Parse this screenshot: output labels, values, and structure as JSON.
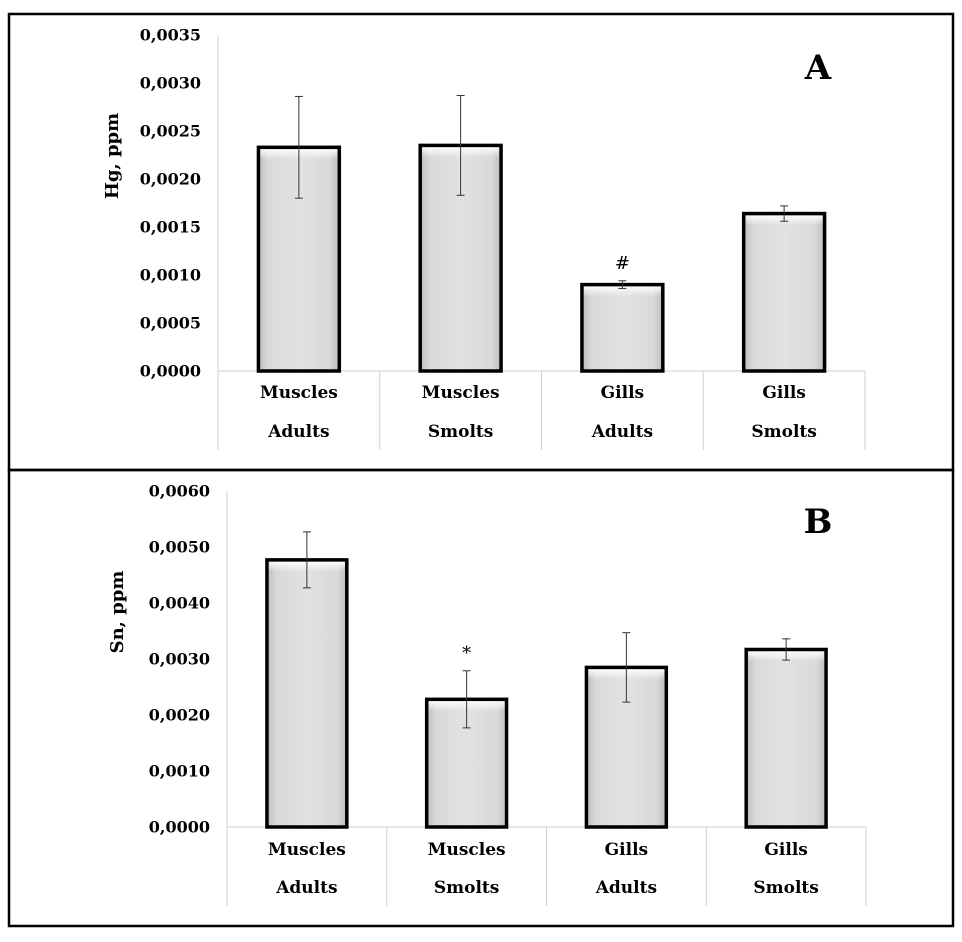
{
  "chart_data": [
    {
      "type": "bar",
      "panel": "A",
      "ylabel": "Hg, ppm",
      "ylim": [
        0,
        0.0035
      ],
      "yticks": [
        "0,0000",
        "0,0005",
        "0,0010",
        "0,0015",
        "0,0020",
        "0,0025",
        "0,0030",
        "0,0035"
      ],
      "categories": [
        {
          "line1": "Muscles",
          "line2": "Adults"
        },
        {
          "line1": "Muscles",
          "line2": "Smolts"
        },
        {
          "line1": "Gills",
          "line2": "Adults"
        },
        {
          "line1": "Gills",
          "line2": "Smolts"
        }
      ],
      "values": [
        0.00233,
        0.00235,
        0.0009,
        0.00164
      ],
      "errors": [
        0.00053,
        0.00052,
        4e-05,
        8e-05
      ],
      "annotations": [
        "",
        "",
        "#",
        ""
      ],
      "grid": false
    },
    {
      "type": "bar",
      "panel": "B",
      "ylabel": "Sn, ppm",
      "ylim": [
        0,
        0.006
      ],
      "yticks": [
        "0,0000",
        "0,0010",
        "0,0020",
        "0,0030",
        "0,0040",
        "0,0050",
        "0,0060"
      ],
      "categories": [
        {
          "line1": "Muscles",
          "line2": "Adults"
        },
        {
          "line1": "Muscles",
          "line2": "Smolts"
        },
        {
          "line1": "Gills",
          "line2": "Adults"
        },
        {
          "line1": "Gills",
          "line2": "Smolts"
        }
      ],
      "values": [
        0.00477,
        0.00228,
        0.00285,
        0.00317
      ],
      "errors": [
        0.0005,
        0.00051,
        0.00062,
        0.00019
      ],
      "annotations": [
        "",
        "*",
        "",
        ""
      ],
      "grid": false
    }
  ]
}
